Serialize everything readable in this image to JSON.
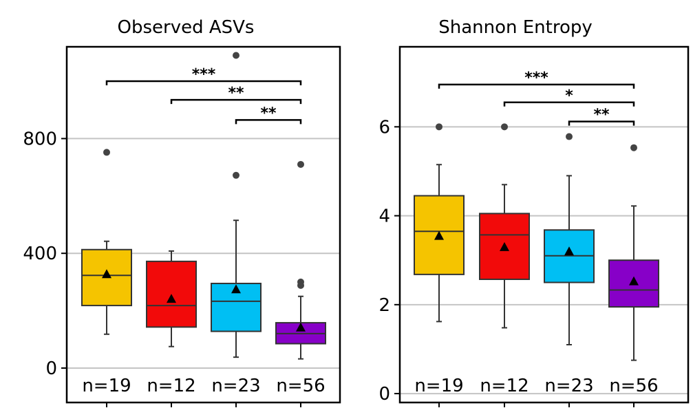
{
  "chart_data": [
    {
      "type": "boxplot",
      "title": "Observed ASVs",
      "ylim": [
        -120,
        1120
      ],
      "yticks": [
        0,
        400,
        800
      ],
      "grid": true,
      "groups": [
        {
          "label": "n=19",
          "color": "#F5C400",
          "whisker_low": 118,
          "q1": 218,
          "median": 323,
          "q3": 413,
          "whisker_high": 442,
          "mean": 328,
          "outliers": [
            752
          ]
        },
        {
          "label": "n=12",
          "color": "#F20A0A",
          "whisker_low": 75,
          "q1": 143,
          "median": 218,
          "q3": 372,
          "whisker_high": 408,
          "mean": 242,
          "outliers": []
        },
        {
          "label": "n=23",
          "color": "#00BFF3",
          "whisker_low": 38,
          "q1": 128,
          "median": 233,
          "q3": 295,
          "whisker_high": 515,
          "mean": 275,
          "outliers": [
            672,
            1090
          ]
        },
        {
          "label": "n=56",
          "color": "#8700C8",
          "whisker_low": 32,
          "q1": 85,
          "median": 120,
          "q3": 158,
          "whisker_high": 250,
          "mean": 142,
          "outliers": [
            288,
            300,
            710
          ]
        }
      ],
      "significance": [
        {
          "from": 0,
          "to": 3,
          "label": "***",
          "y": 1000
        },
        {
          "from": 1,
          "to": 3,
          "label": "**",
          "y": 935
        },
        {
          "from": 2,
          "to": 3,
          "label": "**",
          "y": 865
        }
      ]
    },
    {
      "type": "boxplot",
      "title": "Shannon Entropy",
      "ylim": [
        -0.2,
        7.8
      ],
      "yticks": [
        0,
        2,
        4,
        6
      ],
      "grid": true,
      "groups": [
        {
          "label": "n=19",
          "color": "#F5C400",
          "whisker_low": 1.62,
          "q1": 2.68,
          "median": 3.65,
          "q3": 4.45,
          "whisker_high": 5.15,
          "mean": 3.55,
          "outliers": [
            6.0
          ]
        },
        {
          "label": "n=12",
          "color": "#F20A0A",
          "whisker_low": 1.48,
          "q1": 2.57,
          "median": 3.57,
          "q3": 4.05,
          "whisker_high": 4.7,
          "mean": 3.3,
          "outliers": [
            6.0
          ]
        },
        {
          "label": "n=23",
          "color": "#00BFF3",
          "whisker_low": 1.1,
          "q1": 2.5,
          "median": 3.1,
          "q3": 3.68,
          "whisker_high": 4.9,
          "mean": 3.2,
          "outliers": [
            5.78
          ]
        },
        {
          "label": "n=56",
          "color": "#8700C8",
          "whisker_low": 0.75,
          "q1": 1.95,
          "median": 2.33,
          "q3": 3.0,
          "whisker_high": 4.22,
          "mean": 2.53,
          "outliers": [
            5.53
          ]
        }
      ],
      "significance": [
        {
          "from": 0,
          "to": 3,
          "label": "***",
          "y": 6.95
        },
        {
          "from": 1,
          "to": 3,
          "label": "*",
          "y": 6.55
        },
        {
          "from": 2,
          "to": 3,
          "label": "**",
          "y": 6.12
        }
      ]
    }
  ]
}
